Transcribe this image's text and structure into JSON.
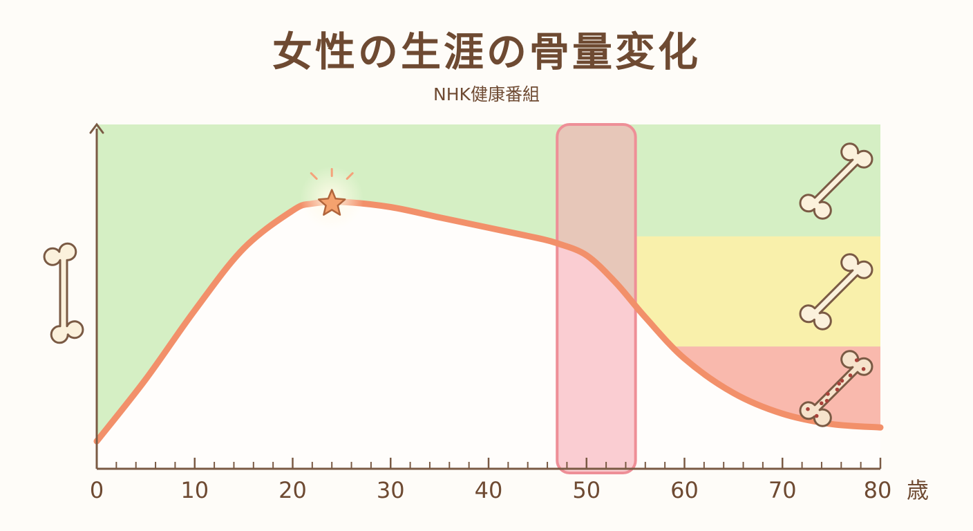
{
  "header": {
    "title": "女性の生涯の骨量変化",
    "subtitle": "NHK健康番組"
  },
  "colors": {
    "background": "#fefcf8",
    "zone_good": "#d5efc4",
    "zone_caution": "#f9f0ab",
    "zone_danger": "#f9b9ad",
    "curve": "#f2906a",
    "highlight": "#f6a6b0",
    "axis": "#7a5a44",
    "text": "#6e4a32"
  },
  "icons": {
    "y_axis_icon": "bone-icon",
    "zone_icons": [
      "healthy-bone-icon",
      "thinning-bone-icon",
      "porous-bone-icon"
    ],
    "peak_marker": "star-icon"
  },
  "chart_data": {
    "type": "area",
    "title": "女性の生涯の骨量変化",
    "subtitle": "NHK健康番組",
    "xlabel": "",
    "x_unit": "歳",
    "ylabel": "",
    "xlim": [
      0,
      80
    ],
    "x_ticks": [
      "0",
      "10",
      "20",
      "30",
      "40",
      "50",
      "60",
      "70",
      "80"
    ],
    "ylim": [
      0,
      100
    ],
    "y_ticks_shown": false,
    "series": [
      {
        "x": [
          0,
          5,
          10,
          15,
          20,
          22,
          25,
          30,
          35,
          40,
          45,
          47,
          50,
          53,
          56,
          60,
          65,
          70,
          75,
          80
        ],
        "y": [
          8,
          26,
          46,
          64,
          75,
          77,
          77.5,
          76,
          73,
          70,
          67,
          65.5,
          62,
          54,
          44,
          32,
          22,
          16,
          13,
          12
        ]
      }
    ],
    "zones": [
      {
        "from": 67.5,
        "to": 100,
        "level": "good"
      },
      {
        "from": 35.5,
        "to": 67.5,
        "level": "caution"
      },
      {
        "from": 0,
        "to": 35.5,
        "level": "danger"
      }
    ],
    "zones_start_x": 55,
    "highlight_range": [
      47,
      55
    ],
    "peak": {
      "x": 24,
      "y": 77
    },
    "grid": false,
    "legend": "none"
  }
}
